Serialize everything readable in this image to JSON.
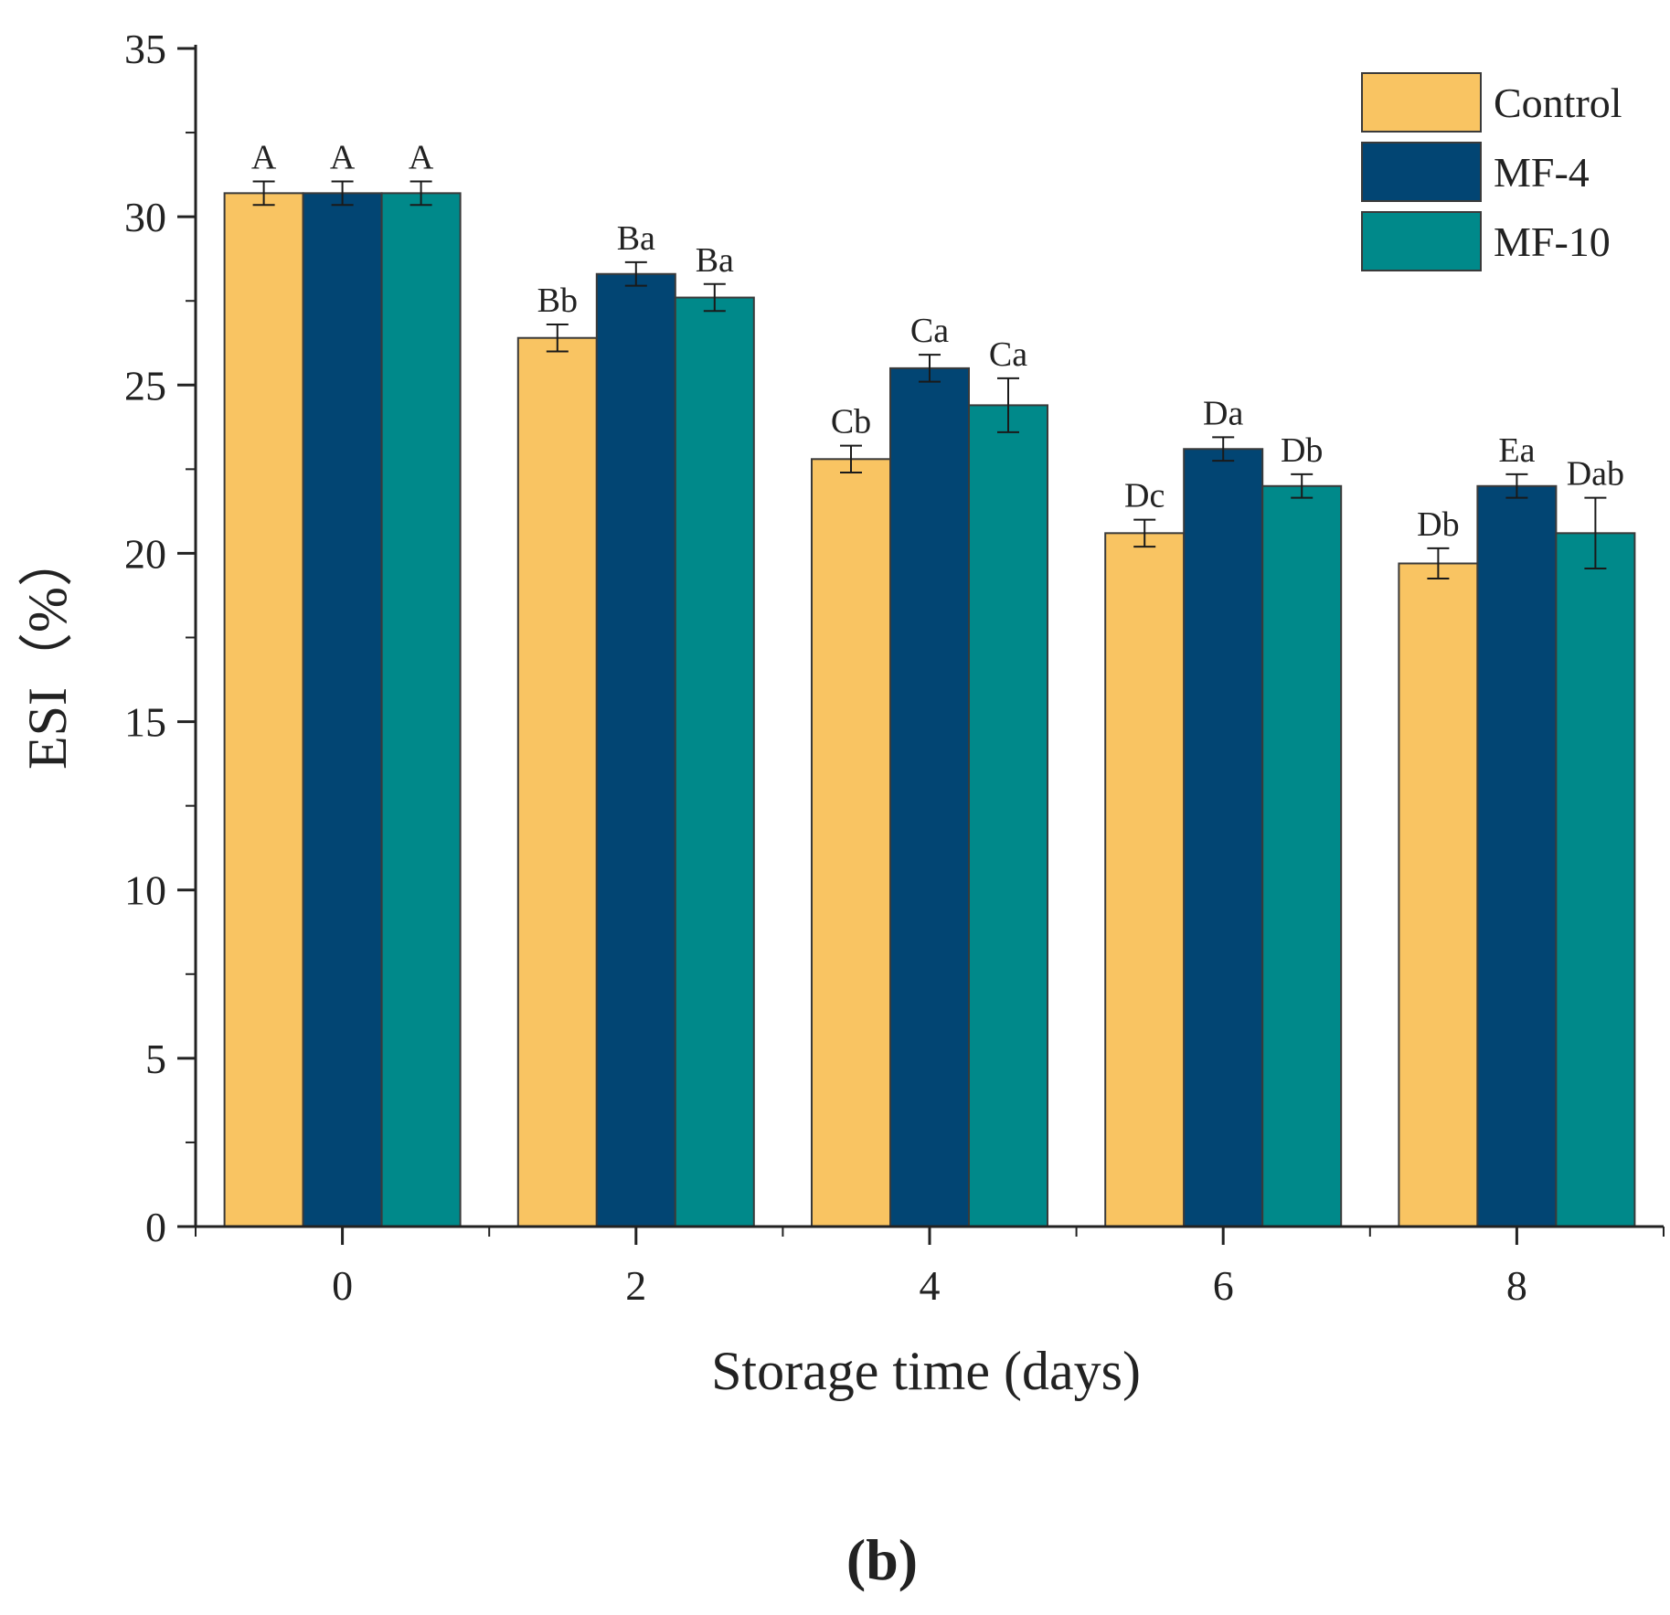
{
  "chart_data": {
    "type": "bar",
    "title": "",
    "xlabel": "Storage time (days)",
    "ylabel": "ESI（%）",
    "ylim": [
      0,
      35
    ],
    "yticks": [
      0,
      5,
      10,
      15,
      20,
      25,
      30,
      35
    ],
    "categories": [
      "0",
      "2",
      "4",
      "6",
      "8"
    ],
    "series": [
      {
        "name": "Control",
        "color": "#F9C462",
        "values": [
          30.7,
          26.4,
          22.8,
          20.6,
          19.7
        ],
        "errors": [
          0.35,
          0.4,
          0.4,
          0.4,
          0.45
        ],
        "labels": [
          "A",
          "Bb",
          "Cb",
          "Dc",
          "Db"
        ]
      },
      {
        "name": "MF-4",
        "color": "#024573",
        "values": [
          30.7,
          28.3,
          25.5,
          23.1,
          22.0
        ],
        "errors": [
          0.35,
          0.35,
          0.4,
          0.35,
          0.35
        ],
        "labels": [
          "A",
          "Ba",
          "Ca",
          "Da",
          "Ea"
        ]
      },
      {
        "name": "MF-10",
        "color": "#00898A",
        "values": [
          30.7,
          27.6,
          24.4,
          22.0,
          20.6
        ],
        "errors": [
          0.35,
          0.4,
          0.8,
          0.35,
          1.05
        ],
        "labels": [
          "A",
          "Ba",
          "Ca",
          "Db",
          "Dab"
        ]
      }
    ],
    "legend_position": "top-right",
    "grid": false
  },
  "panel_label": "(b)"
}
